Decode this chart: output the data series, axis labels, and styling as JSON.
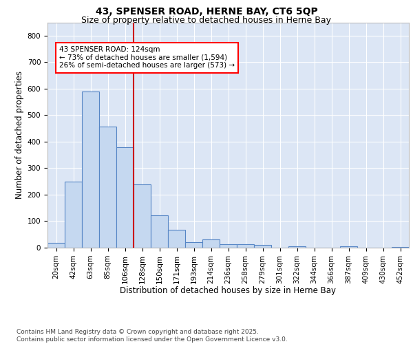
{
  "title1": "43, SPENSER ROAD, HERNE BAY, CT6 5QP",
  "title2": "Size of property relative to detached houses in Herne Bay",
  "xlabel": "Distribution of detached houses by size in Herne Bay",
  "ylabel": "Number of detached properties",
  "bar_values": [
    18,
    250,
    590,
    458,
    380,
    240,
    122,
    68,
    22,
    30,
    14,
    12,
    10,
    0,
    5,
    0,
    0,
    5,
    0,
    0,
    3
  ],
  "bar_labels": [
    "20sqm",
    "42sqm",
    "63sqm",
    "85sqm",
    "106sqm",
    "128sqm",
    "150sqm",
    "171sqm",
    "193sqm",
    "214sqm",
    "236sqm",
    "258sqm",
    "279sqm",
    "301sqm",
    "322sqm",
    "344sqm",
    "366sqm",
    "387sqm",
    "409sqm",
    "430sqm",
    "452sqm"
  ],
  "bar_color": "#c5d8f0",
  "bar_edge_color": "#5585c5",
  "background_color": "#dce6f5",
  "grid_color": "#ffffff",
  "vline_x_index": 4.5,
  "vline_color": "#cc0000",
  "annotation_line1": "43 SPENSER ROAD: 124sqm",
  "annotation_line2": "← 73% of detached houses are smaller (1,594)",
  "annotation_line3": "26% of semi-detached houses are larger (573) →",
  "ylim": [
    0,
    850
  ],
  "yticks": [
    0,
    100,
    200,
    300,
    400,
    500,
    600,
    700,
    800
  ],
  "footer_text": "Contains HM Land Registry data © Crown copyright and database right 2025.\nContains public sector information licensed under the Open Government Licence v3.0.",
  "title1_fontsize": 10,
  "title2_fontsize": 9,
  "xlabel_fontsize": 8.5,
  "ylabel_fontsize": 8.5,
  "tick_fontsize": 7.5,
  "annotation_fontsize": 7.5,
  "footer_fontsize": 6.5
}
